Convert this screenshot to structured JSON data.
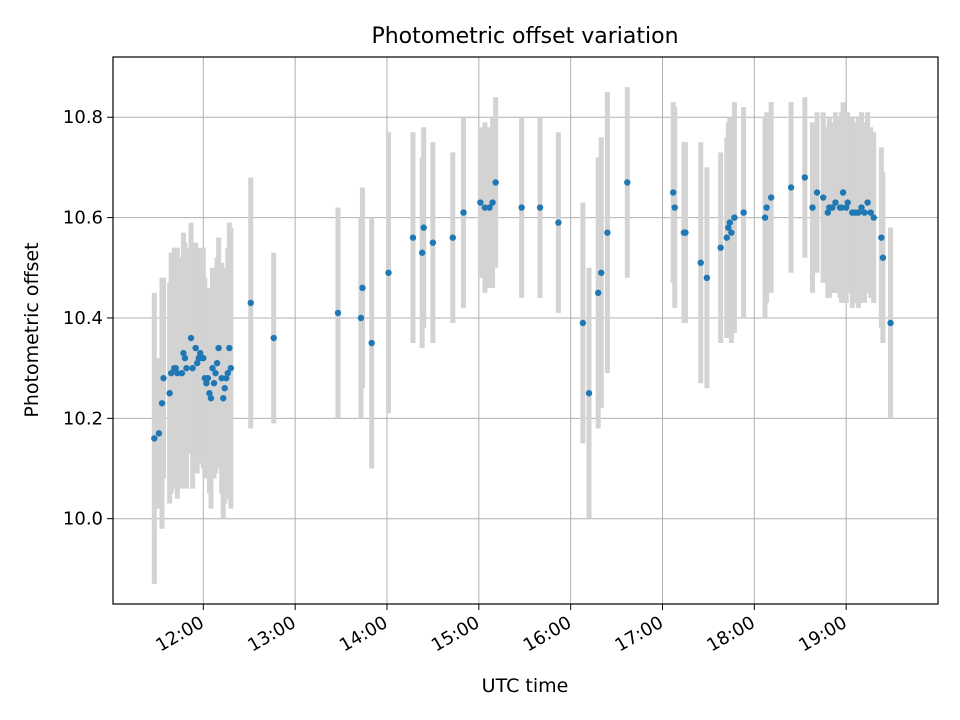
{
  "chart_data": {
    "type": "scatter",
    "title": "Photometric offset variation",
    "xlabel": "UTC time",
    "ylabel": "Photometric offset",
    "x_ticks": [
      "12:00",
      "13:00",
      "14:00",
      "15:00",
      "16:00",
      "17:00",
      "18:00",
      "19:00"
    ],
    "y_ticks": [
      "10.0",
      "10.2",
      "10.4",
      "10.6",
      "10.8"
    ],
    "xlim": [
      "11:01",
      "20:00"
    ],
    "ylim": [
      9.83,
      10.92
    ],
    "grid": true,
    "point_color": "#1f77b4",
    "errorbar_color": "#d3d3d3",
    "points": [
      {
        "x": "11:28",
        "y": 10.16,
        "err": 0.29
      },
      {
        "x": "11:31",
        "y": 10.17,
        "err": 0.15
      },
      {
        "x": "11:33",
        "y": 10.23,
        "err": 0.25
      },
      {
        "x": "11:34",
        "y": 10.28,
        "err": 0.2
      },
      {
        "x": "11:38",
        "y": 10.25,
        "err": 0.22
      },
      {
        "x": "11:39",
        "y": 10.29,
        "err": 0.24
      },
      {
        "x": "11:41",
        "y": 10.3,
        "err": 0.24
      },
      {
        "x": "11:42",
        "y": 10.3,
        "err": 0.24
      },
      {
        "x": "11:43",
        "y": 10.29,
        "err": 0.25
      },
      {
        "x": "11:46",
        "y": 10.29,
        "err": 0.23
      },
      {
        "x": "11:47",
        "y": 10.33,
        "err": 0.24
      },
      {
        "x": "11:48",
        "y": 10.32,
        "err": 0.23
      },
      {
        "x": "11:49",
        "y": 10.3,
        "err": 0.24
      },
      {
        "x": "11:52",
        "y": 10.36,
        "err": 0.23
      },
      {
        "x": "11:53",
        "y": 10.3,
        "err": 0.24
      },
      {
        "x": "11:55",
        "y": 10.34,
        "err": 0.21
      },
      {
        "x": "11:56",
        "y": 10.31,
        "err": 0.22
      },
      {
        "x": "11:57",
        "y": 10.32,
        "err": 0.21
      },
      {
        "x": "11:58",
        "y": 10.33,
        "err": 0.21
      },
      {
        "x": "11:59",
        "y": 10.32,
        "err": 0.21
      },
      {
        "x": "12:00",
        "y": 10.32,
        "err": 0.22
      },
      {
        "x": "12:01",
        "y": 10.28,
        "err": 0.2
      },
      {
        "x": "12:02",
        "y": 10.27,
        "err": 0.19
      },
      {
        "x": "12:03",
        "y": 10.28,
        "err": 0.18
      },
      {
        "x": "12:04",
        "y": 10.25,
        "err": 0.2
      },
      {
        "x": "12:05",
        "y": 10.24,
        "err": 0.22
      },
      {
        "x": "12:06",
        "y": 10.3,
        "err": 0.2
      },
      {
        "x": "12:07",
        "y": 10.27,
        "err": 0.19
      },
      {
        "x": "12:08",
        "y": 10.29,
        "err": 0.2
      },
      {
        "x": "12:09",
        "y": 10.31,
        "err": 0.21
      },
      {
        "x": "12:10",
        "y": 10.34,
        "err": 0.22
      },
      {
        "x": "12:12",
        "y": 10.28,
        "err": 0.23
      },
      {
        "x": "12:13",
        "y": 10.24,
        "err": 0.24
      },
      {
        "x": "12:14",
        "y": 10.26,
        "err": 0.23
      },
      {
        "x": "12:15",
        "y": 10.28,
        "err": 0.22
      },
      {
        "x": "12:16",
        "y": 10.29,
        "err": 0.25
      },
      {
        "x": "12:17",
        "y": 10.34,
        "err": 0.25
      },
      {
        "x": "12:18",
        "y": 10.3,
        "err": 0.28
      },
      {
        "x": "12:31",
        "y": 10.43,
        "err": 0.25
      },
      {
        "x": "12:46",
        "y": 10.36,
        "err": 0.17
      },
      {
        "x": "13:28",
        "y": 10.41,
        "err": 0.21
      },
      {
        "x": "13:43",
        "y": 10.4,
        "err": 0.2
      },
      {
        "x": "13:44",
        "y": 10.46,
        "err": 0.2
      },
      {
        "x": "13:50",
        "y": 10.35,
        "err": 0.25
      },
      {
        "x": "14:01",
        "y": 10.49,
        "err": 0.28
      },
      {
        "x": "14:17",
        "y": 10.56,
        "err": 0.21
      },
      {
        "x": "14:23",
        "y": 10.53,
        "err": 0.19
      },
      {
        "x": "14:24",
        "y": 10.58,
        "err": 0.2
      },
      {
        "x": "14:30",
        "y": 10.55,
        "err": 0.2
      },
      {
        "x": "14:43",
        "y": 10.56,
        "err": 0.17
      },
      {
        "x": "14:50",
        "y": 10.61,
        "err": 0.19
      },
      {
        "x": "15:01",
        "y": 10.63,
        "err": 0.15
      },
      {
        "x": "15:04",
        "y": 10.62,
        "err": 0.17
      },
      {
        "x": "15:07",
        "y": 10.62,
        "err": 0.16
      },
      {
        "x": "15:09",
        "y": 10.63,
        "err": 0.17
      },
      {
        "x": "15:11",
        "y": 10.67,
        "err": 0.17
      },
      {
        "x": "15:28",
        "y": 10.62,
        "err": 0.18
      },
      {
        "x": "15:40",
        "y": 10.62,
        "err": 0.18
      },
      {
        "x": "15:52",
        "y": 10.59,
        "err": 0.18
      },
      {
        "x": "16:08",
        "y": 10.39,
        "err": 0.24
      },
      {
        "x": "16:12",
        "y": 10.25,
        "err": 0.25
      },
      {
        "x": "16:18",
        "y": 10.45,
        "err": 0.27
      },
      {
        "x": "16:20",
        "y": 10.49,
        "err": 0.27
      },
      {
        "x": "16:24",
        "y": 10.57,
        "err": 0.28
      },
      {
        "x": "16:37",
        "y": 10.67,
        "err": 0.19
      },
      {
        "x": "17:07",
        "y": 10.65,
        "err": 0.18
      },
      {
        "x": "17:08",
        "y": 10.62,
        "err": 0.2
      },
      {
        "x": "17:14",
        "y": 10.57,
        "err": 0.18
      },
      {
        "x": "17:15",
        "y": 10.57,
        "err": 0.18
      },
      {
        "x": "17:25",
        "y": 10.51,
        "err": 0.24
      },
      {
        "x": "17:29",
        "y": 10.48,
        "err": 0.22
      },
      {
        "x": "17:38",
        "y": 10.54,
        "err": 0.19
      },
      {
        "x": "17:42",
        "y": 10.56,
        "err": 0.2
      },
      {
        "x": "17:43",
        "y": 10.58,
        "err": 0.21
      },
      {
        "x": "17:44",
        "y": 10.59,
        "err": 0.21
      },
      {
        "x": "17:45",
        "y": 10.57,
        "err": 0.22
      },
      {
        "x": "17:47",
        "y": 10.6,
        "err": 0.23
      },
      {
        "x": "17:53",
        "y": 10.61,
        "err": 0.21
      },
      {
        "x": "18:07",
        "y": 10.6,
        "err": 0.2
      },
      {
        "x": "18:08",
        "y": 10.62,
        "err": 0.19
      },
      {
        "x": "18:11",
        "y": 10.64,
        "err": 0.19
      },
      {
        "x": "18:24",
        "y": 10.66,
        "err": 0.17
      },
      {
        "x": "18:33",
        "y": 10.68,
        "err": 0.16
      },
      {
        "x": "18:38",
        "y": 10.62,
        "err": 0.17
      },
      {
        "x": "18:41",
        "y": 10.65,
        "err": 0.16
      },
      {
        "x": "18:45",
        "y": 10.64,
        "err": 0.17
      },
      {
        "x": "18:48",
        "y": 10.61,
        "err": 0.17
      },
      {
        "x": "18:49",
        "y": 10.62,
        "err": 0.18
      },
      {
        "x": "18:51",
        "y": 10.62,
        "err": 0.17
      },
      {
        "x": "18:53",
        "y": 10.63,
        "err": 0.18
      },
      {
        "x": "18:56",
        "y": 10.62,
        "err": 0.18
      },
      {
        "x": "18:57",
        "y": 10.62,
        "err": 0.19
      },
      {
        "x": "18:58",
        "y": 10.65,
        "err": 0.18
      },
      {
        "x": "19:00",
        "y": 10.62,
        "err": 0.19
      },
      {
        "x": "19:01",
        "y": 10.63,
        "err": 0.18
      },
      {
        "x": "19:04",
        "y": 10.61,
        "err": 0.19
      },
      {
        "x": "19:06",
        "y": 10.61,
        "err": 0.18
      },
      {
        "x": "19:08",
        "y": 10.61,
        "err": 0.19
      },
      {
        "x": "19:10",
        "y": 10.62,
        "err": 0.19
      },
      {
        "x": "19:12",
        "y": 10.61,
        "err": 0.18
      },
      {
        "x": "19:14",
        "y": 10.63,
        "err": 0.18
      },
      {
        "x": "19:16",
        "y": 10.61,
        "err": 0.17
      },
      {
        "x": "19:18",
        "y": 10.6,
        "err": 0.17
      },
      {
        "x": "19:23",
        "y": 10.56,
        "err": 0.18
      },
      {
        "x": "19:24",
        "y": 10.52,
        "err": 0.17
      },
      {
        "x": "19:29",
        "y": 10.39,
        "err": 0.19
      }
    ]
  }
}
